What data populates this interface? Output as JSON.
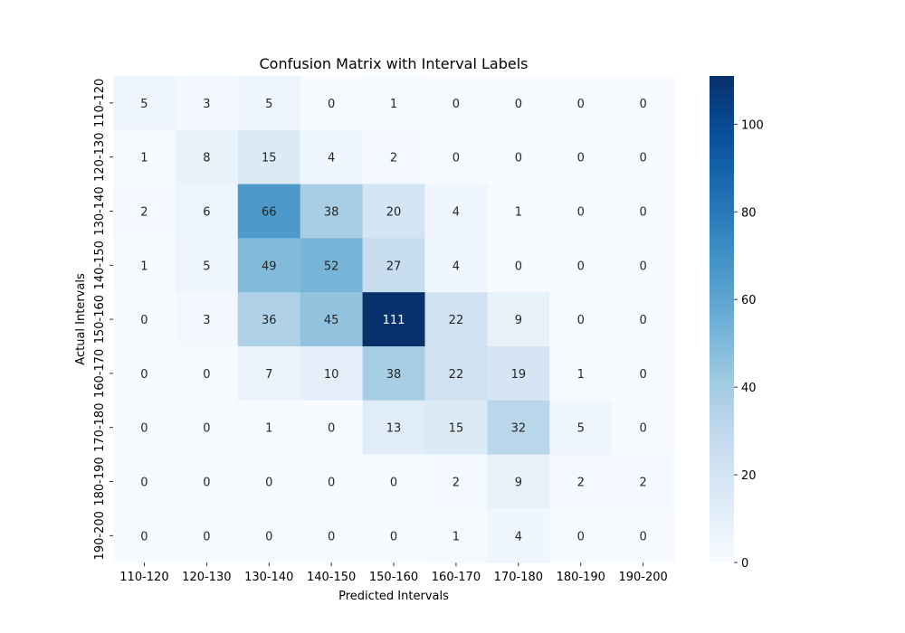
{
  "chart_data": {
    "type": "heatmap",
    "title": "Confusion Matrix with Interval Labels",
    "xlabel": "Predicted Intervals",
    "ylabel": "Actual Intervals",
    "x_categories": [
      "110-120",
      "120-130",
      "130-140",
      "140-150",
      "150-160",
      "160-170",
      "170-180",
      "180-190",
      "190-200"
    ],
    "y_categories": [
      "110-120",
      "120-130",
      "130-140",
      "140-150",
      "150-160",
      "160-170",
      "170-180",
      "180-190",
      "190-200"
    ],
    "values": [
      [
        5,
        3,
        5,
        0,
        1,
        0,
        0,
        0,
        0
      ],
      [
        1,
        8,
        15,
        4,
        2,
        0,
        0,
        0,
        0
      ],
      [
        2,
        6,
        66,
        38,
        20,
        4,
        1,
        0,
        0
      ],
      [
        1,
        5,
        49,
        52,
        27,
        4,
        0,
        0,
        0
      ],
      [
        0,
        3,
        36,
        45,
        111,
        22,
        9,
        0,
        0
      ],
      [
        0,
        0,
        7,
        10,
        38,
        22,
        19,
        1,
        0
      ],
      [
        0,
        0,
        1,
        0,
        13,
        15,
        32,
        5,
        0
      ],
      [
        0,
        0,
        0,
        0,
        0,
        2,
        9,
        2,
        2
      ],
      [
        0,
        0,
        0,
        0,
        0,
        1,
        4,
        0,
        0
      ]
    ],
    "colormap": "Blues",
    "colorbar": {
      "range": [
        0,
        111
      ],
      "ticks": [
        0,
        20,
        40,
        60,
        80,
        100
      ]
    },
    "annotations": true
  }
}
